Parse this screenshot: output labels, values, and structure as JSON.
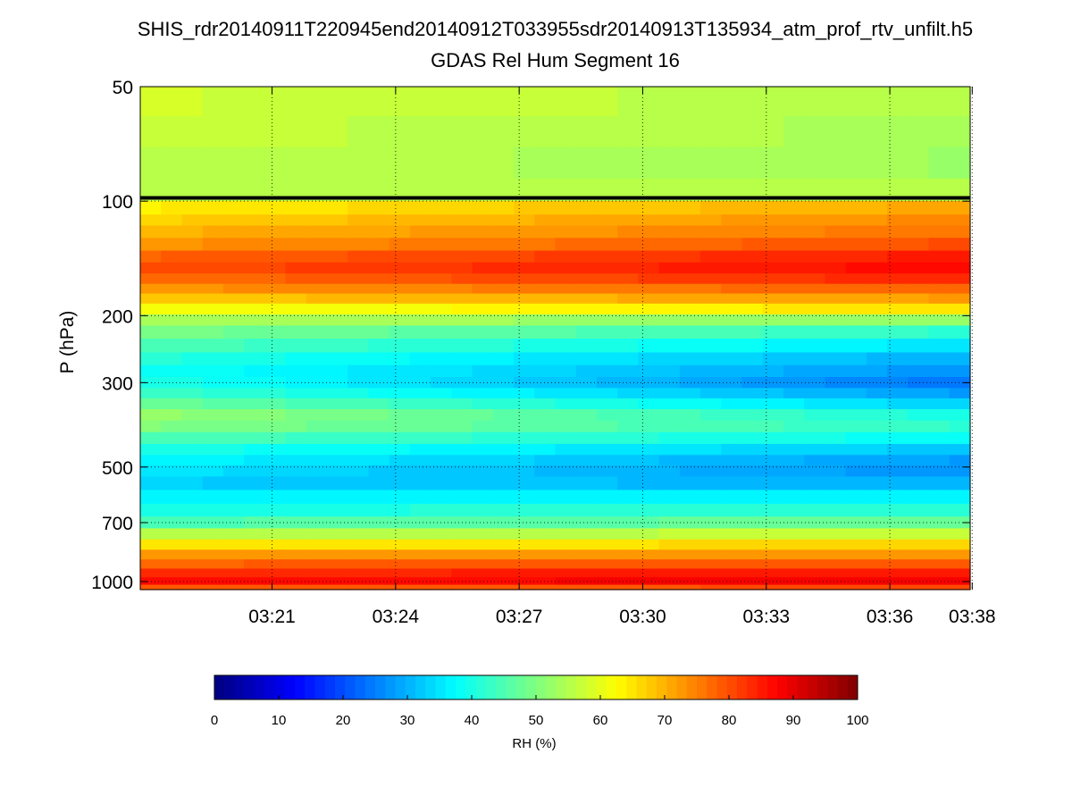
{
  "chart_data": {
    "type": "heatmap",
    "title": "SHIS_rdr20140911T220945end20140912T033955sdr20140913T135934_atm_prof_rtv_unfilt.h5",
    "subtitle": "GDAS Rel Hum Segment 16",
    "ylabel": "P (hPa)",
    "yscale": "log",
    "yreversed": true,
    "ylim": [
      50,
      1050
    ],
    "y_ticks": [
      50,
      100,
      200,
      300,
      500,
      700,
      1000
    ],
    "x_ticks": [
      "03:21",
      "03:24",
      "03:27",
      "03:30",
      "03:33",
      "03:36",
      "03:38"
    ],
    "x_tick_minutes": [
      201,
      204,
      207,
      210,
      213,
      216,
      218
    ],
    "xlim_minutes": [
      197.8,
      217.95
    ],
    "grid": true,
    "colorbar": {
      "label": "RH (%)",
      "range": [
        0,
        100
      ],
      "ticks": [
        0,
        10,
        20,
        30,
        40,
        50,
        60,
        70,
        80,
        90,
        100
      ],
      "colormap": "jet",
      "levels": 64
    },
    "tropopause_line_hPa": 98,
    "profile_pressures_hPa": [
      55,
      65,
      80,
      95,
      105,
      112,
      120,
      130,
      140,
      150,
      160,
      170,
      180,
      192,
      205,
      220,
      240,
      260,
      280,
      300,
      320,
      340,
      365,
      390,
      420,
      450,
      480,
      510,
      550,
      600,
      650,
      700,
      750,
      800,
      850,
      900,
      950,
      1000,
      1040
    ],
    "rh_profile_start_percent": [
      58,
      57,
      56,
      56,
      64,
      67,
      70,
      73,
      78,
      80,
      77,
      73,
      68,
      61,
      54,
      49,
      45,
      41,
      39,
      40,
      43,
      48,
      52,
      50,
      45,
      40,
      37,
      35,
      33,
      36,
      40,
      45,
      55,
      65,
      72,
      78,
      84,
      87,
      79
    ],
    "rh_profile_end_percent": [
      55,
      54,
      53,
      55,
      71,
      74,
      76,
      80,
      85,
      87,
      84,
      78,
      72,
      65,
      52,
      42,
      35,
      30,
      27,
      24,
      28,
      33,
      40,
      42,
      38,
      32,
      28,
      27,
      30,
      36,
      42,
      48,
      57,
      66,
      73,
      79,
      85,
      88,
      80
    ]
  }
}
